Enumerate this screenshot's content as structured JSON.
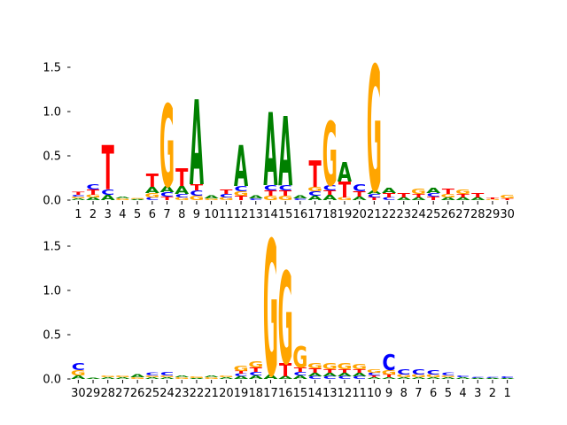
{
  "colors": {
    "A": "#008000",
    "C": "#0000ff",
    "G": "#ffa500",
    "T": "#ff0000"
  },
  "chart_data": [
    {
      "type": "sequence-logo",
      "title": "",
      "xlabel": "",
      "ylabel": "",
      "ylim": [
        0,
        1.6
      ],
      "y_ticks": [
        "0.0",
        "0.5",
        "1.0",
        "1.5"
      ],
      "grid": false,
      "x_tick_labels": [
        "1",
        "2",
        "3",
        "4",
        "5",
        "6",
        "7",
        "8",
        "9",
        "10",
        "11",
        "12",
        "13",
        "14",
        "15",
        "16",
        "17",
        "18",
        "19",
        "20",
        "21",
        "22",
        "23",
        "24",
        "25",
        "26",
        "27",
        "28",
        "29",
        "30"
      ],
      "stacks": [
        [
          [
            "A",
            0.02
          ],
          [
            "G",
            0.02
          ],
          [
            "C",
            0.02
          ],
          [
            "T",
            0.03
          ]
        ],
        [
          [
            "A",
            0.03
          ],
          [
            "G",
            0.03
          ],
          [
            "T",
            0.06
          ],
          [
            "C",
            0.06
          ]
        ],
        [
          [
            "A",
            0.06
          ],
          [
            "C",
            0.06
          ],
          [
            "T",
            0.5
          ]
        ],
        [
          [
            "G",
            0.02
          ],
          [
            "A",
            0.02
          ]
        ],
        [
          [
            "A",
            0.01
          ],
          [
            "G",
            0.01
          ]
        ],
        [
          [
            "C",
            0.03
          ],
          [
            "G",
            0.05
          ],
          [
            "A",
            0.07
          ],
          [
            "T",
            0.15
          ]
        ],
        [
          [
            "T",
            0.04
          ],
          [
            "C",
            0.05
          ],
          [
            "A",
            0.07
          ],
          [
            "G",
            0.93
          ]
        ],
        [
          [
            "G",
            0.03
          ],
          [
            "C",
            0.04
          ],
          [
            "A",
            0.09
          ],
          [
            "T",
            0.2
          ]
        ],
        [
          [
            "G",
            0.05
          ],
          [
            "C",
            0.06
          ],
          [
            "T",
            0.07
          ],
          [
            "A",
            0.96
          ]
        ],
        [
          [
            "G",
            0.02
          ],
          [
            "A",
            0.03
          ]
        ],
        [
          [
            "G",
            0.03
          ],
          [
            "C",
            0.04
          ],
          [
            "T",
            0.05
          ]
        ],
        [
          [
            "T",
            0.05
          ],
          [
            "G",
            0.05
          ],
          [
            "C",
            0.06
          ],
          [
            "A",
            0.46
          ]
        ],
        [
          [
            "C",
            0.02
          ],
          [
            "A",
            0.03
          ]
        ],
        [
          [
            "G",
            0.05
          ],
          [
            "T",
            0.06
          ],
          [
            "C",
            0.06
          ],
          [
            "A",
            0.83
          ]
        ],
        [
          [
            "G",
            0.05
          ],
          [
            "T",
            0.06
          ],
          [
            "C",
            0.06
          ],
          [
            "A",
            0.78
          ]
        ],
        [
          [
            "C",
            0.02
          ],
          [
            "A",
            0.03
          ]
        ],
        [
          [
            "A",
            0.05
          ],
          [
            "C",
            0.05
          ],
          [
            "G",
            0.05
          ],
          [
            "T",
            0.3
          ]
        ],
        [
          [
            "A",
            0.06
          ],
          [
            "T",
            0.05
          ],
          [
            "C",
            0.06
          ],
          [
            "G",
            0.72
          ]
        ],
        [
          [
            "G",
            0.03
          ],
          [
            "T",
            0.18
          ],
          [
            "A",
            0.22
          ]
        ],
        [
          [
            "A",
            0.04
          ],
          [
            "T",
            0.06
          ],
          [
            "C",
            0.08
          ]
        ],
        [
          [
            "T",
            0.03
          ],
          [
            "C",
            0.04
          ],
          [
            "A",
            0.04
          ],
          [
            "G",
            1.42
          ]
        ],
        [
          [
            "C",
            0.03
          ],
          [
            "T",
            0.05
          ],
          [
            "A",
            0.06
          ]
        ],
        [
          [
            "A",
            0.03
          ],
          [
            "T",
            0.05
          ]
        ],
        [
          [
            "A",
            0.03
          ],
          [
            "T",
            0.04
          ],
          [
            "G",
            0.06
          ]
        ],
        [
          [
            "T",
            0.04
          ],
          [
            "C",
            0.04
          ],
          [
            "A",
            0.06
          ]
        ],
        [
          [
            "A",
            0.03
          ],
          [
            "G",
            0.04
          ],
          [
            "T",
            0.06
          ]
        ],
        [
          [
            "A",
            0.03
          ],
          [
            "T",
            0.04
          ],
          [
            "G",
            0.05
          ]
        ],
        [
          [
            "A",
            0.03
          ],
          [
            "T",
            0.05
          ]
        ],
        [
          [
            "G",
            0.01
          ],
          [
            "T",
            0.02
          ]
        ],
        [
          [
            "T",
            0.02
          ],
          [
            "G",
            0.04
          ]
        ]
      ]
    },
    {
      "type": "sequence-logo",
      "title": "",
      "xlabel": "",
      "ylabel": "",
      "ylim": [
        0,
        1.6
      ],
      "y_ticks": [
        "0.0",
        "0.5",
        "1.0",
        "1.5"
      ],
      "grid": false,
      "x_tick_labels": [
        "30",
        "29",
        "28",
        "27",
        "26",
        "25",
        "24",
        "23",
        "22",
        "21",
        "20",
        "19",
        "18",
        "17",
        "16",
        "15",
        "14",
        "13",
        "12",
        "11",
        "10",
        "9",
        "8",
        "7",
        "6",
        "5",
        "4",
        "3",
        "2",
        "1"
      ],
      "stacks": [
        [
          [
            "A",
            0.04
          ],
          [
            "G",
            0.06
          ],
          [
            "C",
            0.08
          ]
        ],
        [
          [
            "A",
            0.01
          ]
        ],
        [
          [
            "A",
            0.02
          ],
          [
            "G",
            0.02
          ]
        ],
        [
          [
            "A",
            0.02
          ],
          [
            "G",
            0.02
          ]
        ],
        [
          [
            "G",
            0.02
          ],
          [
            "A",
            0.03
          ]
        ],
        [
          [
            "A",
            0.02
          ],
          [
            "G",
            0.02
          ],
          [
            "C",
            0.03
          ]
        ],
        [
          [
            "A",
            0.02
          ],
          [
            "G",
            0.02
          ],
          [
            "C",
            0.04
          ]
        ],
        [
          [
            "G",
            0.02
          ],
          [
            "A",
            0.02
          ]
        ],
        [
          [
            "A",
            0.01
          ],
          [
            "G",
            0.02
          ]
        ],
        [
          [
            "G",
            0.02
          ],
          [
            "A",
            0.02
          ]
        ],
        [
          [
            "A",
            0.02
          ],
          [
            "G",
            0.02
          ]
        ],
        [
          [
            "A",
            0.03
          ],
          [
            "C",
            0.03
          ],
          [
            "T",
            0.03
          ],
          [
            "G",
            0.06
          ]
        ],
        [
          [
            "A",
            0.04
          ],
          [
            "C",
            0.04
          ],
          [
            "T",
            0.05
          ],
          [
            "G",
            0.07
          ]
        ],
        [
          [
            "A",
            0.05
          ],
          [
            "G",
            1.53
          ]
        ],
        [
          [
            "A",
            0.03
          ],
          [
            "T",
            0.15
          ],
          [
            "G",
            1.04
          ]
        ],
        [
          [
            "A",
            0.04
          ],
          [
            "C",
            0.04
          ],
          [
            "T",
            0.05
          ],
          [
            "G",
            0.24
          ]
        ],
        [
          [
            "C",
            0.03
          ],
          [
            "A",
            0.04
          ],
          [
            "T",
            0.05
          ],
          [
            "G",
            0.06
          ]
        ],
        [
          [
            "C",
            0.03
          ],
          [
            "A",
            0.04
          ],
          [
            "T",
            0.04
          ],
          [
            "G",
            0.07
          ]
        ],
        [
          [
            "C",
            0.03
          ],
          [
            "A",
            0.04
          ],
          [
            "T",
            0.04
          ],
          [
            "G",
            0.07
          ]
        ],
        [
          [
            "C",
            0.03
          ],
          [
            "A",
            0.04
          ],
          [
            "T",
            0.04
          ],
          [
            "G",
            0.06
          ]
        ],
        [
          [
            "A",
            0.02
          ],
          [
            "T",
            0.02
          ],
          [
            "C",
            0.03
          ],
          [
            "G",
            0.04
          ]
        ],
        [
          [
            "A",
            0.02
          ],
          [
            "T",
            0.03
          ],
          [
            "G",
            0.05
          ],
          [
            "C",
            0.18
          ]
        ],
        [
          [
            "A",
            0.02
          ],
          [
            "G",
            0.03
          ],
          [
            "C",
            0.06
          ]
        ],
        [
          [
            "A",
            0.02
          ],
          [
            "G",
            0.03
          ],
          [
            "C",
            0.06
          ]
        ],
        [
          [
            "A",
            0.02
          ],
          [
            "G",
            0.03
          ],
          [
            "C",
            0.05
          ]
        ],
        [
          [
            "A",
            0.02
          ],
          [
            "G",
            0.02
          ],
          [
            "C",
            0.03
          ]
        ],
        [
          [
            "A",
            0.02
          ],
          [
            "C",
            0.02
          ]
        ],
        [
          [
            "A",
            0.01
          ],
          [
            "C",
            0.01
          ]
        ],
        [
          [
            "A",
            0.01
          ],
          [
            "C",
            0.01
          ]
        ],
        [
          [
            "A",
            0.01
          ],
          [
            "C",
            0.02
          ]
        ]
      ]
    }
  ]
}
